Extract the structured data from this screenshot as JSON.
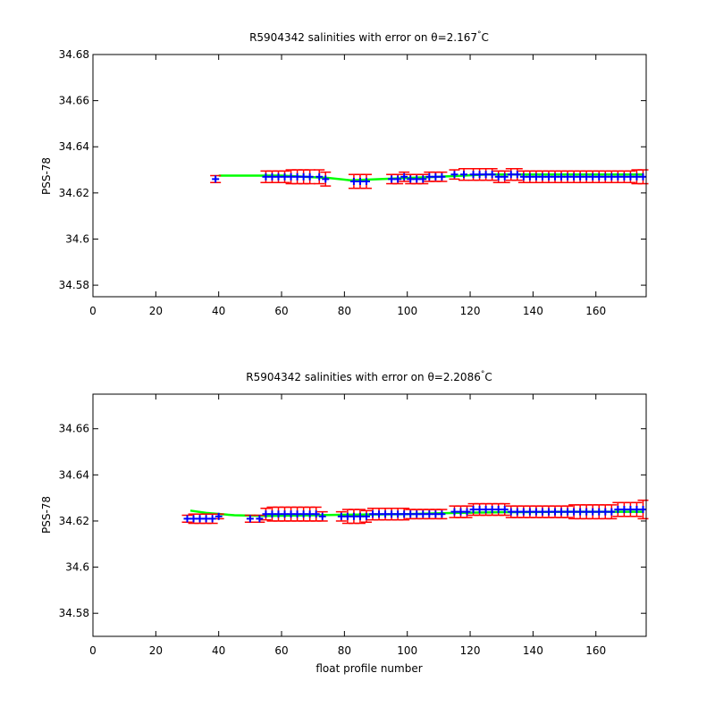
{
  "chart_data": [
    {
      "type": "scatter",
      "title": "R5904342 salinities with error on θ=2.167°C",
      "title_parts": {
        "prefix": "R5904342 salinities with error on θ=2.167",
        "degree": "°",
        "unit": "C"
      },
      "xlabel": "",
      "ylabel": "PSS-78",
      "xlim": [
        0,
        176
      ],
      "ylim": [
        34.575,
        34.68
      ],
      "xticks": [
        0,
        20,
        40,
        60,
        80,
        100,
        120,
        140,
        160
      ],
      "xtick_labels": [
        "0",
        "20",
        "40",
        "60",
        "80",
        "100",
        "120",
        "140",
        "160"
      ],
      "yticks": [
        34.58,
        34.6,
        34.62,
        34.64,
        34.66,
        34.68
      ],
      "ytick_labels": [
        "34.58",
        "34.6",
        "34.62",
        "34.64",
        "34.66",
        "34.68"
      ],
      "grid": false,
      "colors": {
        "errorbar": "#ff0000",
        "points": "#0000ff",
        "fit": "#00ff00"
      },
      "fit": {
        "x": [
          40,
          60,
          75,
          82,
          95,
          110,
          125,
          145,
          175
        ],
        "y": [
          34.6275,
          34.6275,
          34.6265,
          34.6255,
          34.6262,
          34.627,
          34.628,
          34.628,
          34.628
        ]
      },
      "points": {
        "x": [
          39,
          55,
          57,
          59,
          61,
          63,
          65,
          67,
          69,
          72,
          74,
          83,
          85,
          87,
          95,
          97,
          99,
          101,
          103,
          105,
          107,
          109,
          111,
          115,
          118,
          121,
          123,
          125,
          127,
          129,
          131,
          133,
          135,
          137,
          139,
          141,
          143,
          145,
          147,
          149,
          151,
          153,
          155,
          157,
          159,
          161,
          163,
          165,
          167,
          169,
          171,
          173,
          175
        ],
        "y": [
          34.626,
          34.627,
          34.627,
          34.627,
          34.627,
          34.627,
          34.627,
          34.627,
          34.627,
          34.627,
          34.626,
          34.625,
          34.625,
          34.625,
          34.626,
          34.626,
          34.627,
          34.626,
          34.626,
          34.626,
          34.627,
          34.627,
          34.627,
          34.628,
          34.628,
          34.628,
          34.628,
          34.628,
          34.628,
          34.627,
          34.627,
          34.628,
          34.628,
          34.627,
          34.627,
          34.627,
          34.627,
          34.627,
          34.627,
          34.627,
          34.627,
          34.627,
          34.627,
          34.627,
          34.627,
          34.627,
          34.627,
          34.627,
          34.627,
          34.627,
          34.627,
          34.627,
          34.627
        ],
        "err": [
          0.0015,
          0.0025,
          0.0025,
          0.0025,
          0.0025,
          0.003,
          0.003,
          0.003,
          0.003,
          0.003,
          0.003,
          0.003,
          0.003,
          0.003,
          0.002,
          0.002,
          0.002,
          0.002,
          0.002,
          0.002,
          0.002,
          0.002,
          0.002,
          0.002,
          0.0025,
          0.0025,
          0.0025,
          0.0025,
          0.0025,
          0.0025,
          0.0025,
          0.0025,
          0.0025,
          0.0025,
          0.0025,
          0.0025,
          0.0025,
          0.0025,
          0.0025,
          0.0025,
          0.0025,
          0.0025,
          0.0025,
          0.0025,
          0.0025,
          0.0025,
          0.0025,
          0.0025,
          0.0025,
          0.0025,
          0.0025,
          0.003,
          0.003
        ]
      }
    },
    {
      "type": "scatter",
      "title": "R5904342 salinities with error on θ=2.2086°C",
      "title_parts": {
        "prefix": "R5904342 salinities with error on θ=2.2086",
        "degree": "°",
        "unit": "C"
      },
      "xlabel": "float profile number",
      "ylabel": "PSS-78",
      "xlim": [
        0,
        176
      ],
      "ylim": [
        34.57,
        34.675
      ],
      "xticks": [
        0,
        20,
        40,
        60,
        80,
        100,
        120,
        140,
        160
      ],
      "xtick_labels": [
        "0",
        "20",
        "40",
        "60",
        "80",
        "100",
        "120",
        "140",
        "160"
      ],
      "yticks": [
        34.58,
        34.6,
        34.62,
        34.64,
        34.66
      ],
      "ytick_labels": [
        "34.58",
        "34.6",
        "34.62",
        "34.64",
        "34.66"
      ],
      "grid": false,
      "colors": {
        "errorbar": "#ff0000",
        "points": "#0000ff",
        "fit": "#00ff00"
      },
      "fit": {
        "x": [
          31,
          36,
          45,
          55,
          70,
          85,
          100,
          115,
          130,
          150,
          175
        ],
        "y": [
          34.6245,
          34.6235,
          34.6225,
          34.6222,
          34.6225,
          34.6228,
          34.623,
          34.6235,
          34.6238,
          34.624,
          34.624
        ]
      },
      "points": {
        "x": [
          30,
          32,
          34,
          36,
          38,
          40,
          50,
          53,
          55,
          57,
          59,
          61,
          63,
          65,
          67,
          69,
          71,
          73,
          79,
          81,
          83,
          85,
          87,
          89,
          91,
          93,
          95,
          97,
          99,
          101,
          103,
          105,
          107,
          109,
          111,
          115,
          117,
          119,
          121,
          123,
          125,
          127,
          129,
          131,
          133,
          135,
          137,
          139,
          141,
          143,
          145,
          147,
          149,
          151,
          153,
          155,
          157,
          159,
          161,
          163,
          165,
          167,
          169,
          171,
          173,
          175
        ],
        "y": [
          34.621,
          34.621,
          34.621,
          34.621,
          34.621,
          34.622,
          34.621,
          34.621,
          34.623,
          34.623,
          34.623,
          34.623,
          34.623,
          34.623,
          34.623,
          34.623,
          34.623,
          34.622,
          34.622,
          34.622,
          34.622,
          34.622,
          34.622,
          34.623,
          34.623,
          34.623,
          34.623,
          34.623,
          34.623,
          34.623,
          34.623,
          34.623,
          34.623,
          34.623,
          34.623,
          34.624,
          34.624,
          34.624,
          34.625,
          34.625,
          34.625,
          34.625,
          34.625,
          34.625,
          34.624,
          34.624,
          34.624,
          34.624,
          34.624,
          34.624,
          34.624,
          34.624,
          34.624,
          34.624,
          34.624,
          34.624,
          34.624,
          34.624,
          34.624,
          34.624,
          34.624,
          34.625,
          34.625,
          34.625,
          34.625,
          34.625
        ],
        "err": [
          0.0015,
          0.002,
          0.002,
          0.002,
          0.002,
          0.001,
          0.0015,
          0.0015,
          0.0025,
          0.003,
          0.003,
          0.003,
          0.003,
          0.003,
          0.003,
          0.003,
          0.003,
          0.002,
          0.002,
          0.003,
          0.003,
          0.003,
          0.0025,
          0.0025,
          0.0025,
          0.0025,
          0.0025,
          0.0025,
          0.0025,
          0.002,
          0.002,
          0.002,
          0.002,
          0.002,
          0.002,
          0.0025,
          0.0025,
          0.0025,
          0.0025,
          0.0025,
          0.0025,
          0.0025,
          0.0025,
          0.0025,
          0.0025,
          0.0025,
          0.0025,
          0.0025,
          0.0025,
          0.0025,
          0.0025,
          0.0025,
          0.0025,
          0.0025,
          0.003,
          0.003,
          0.003,
          0.003,
          0.003,
          0.003,
          0.003,
          0.003,
          0.003,
          0.003,
          0.003,
          0.004
        ]
      }
    }
  ]
}
